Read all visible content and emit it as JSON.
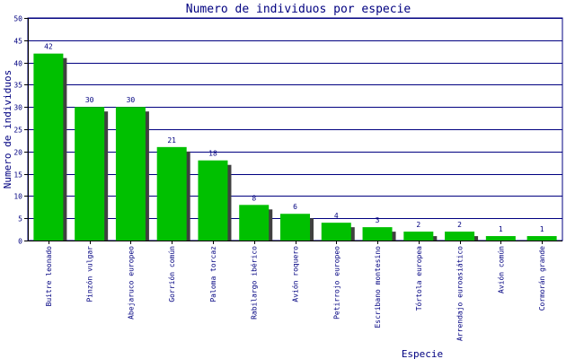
{
  "chart_data": {
    "type": "bar",
    "title": "Numero de individuos por especie",
    "xlabel": "Especie",
    "ylabel": "Numero de individuos",
    "ylim": [
      0,
      50
    ],
    "yticks": [
      0,
      5,
      10,
      15,
      20,
      25,
      30,
      35,
      40,
      45,
      50
    ],
    "grid": true,
    "legend": "none",
    "colors": {
      "bar": "#00c000",
      "shadow": "#404040",
      "grid": "#000080",
      "text": "#000080",
      "axis": "#000000"
    },
    "categories": [
      "Buitre leonado",
      "Pinzón vulgar",
      "Abejaruco europeo",
      "Gorrión común",
      "Paloma torcaz",
      "Rabilargo ibérico",
      "Avión roquero",
      "Petirrojo europeo",
      "Escribano montesino",
      "Tórtola europea",
      "Arrendajo euroasiático",
      "Avión común",
      "Cormorán grande"
    ],
    "values": [
      42,
      30,
      30,
      21,
      18,
      8,
      6,
      4,
      3,
      2,
      2,
      1,
      1
    ]
  }
}
